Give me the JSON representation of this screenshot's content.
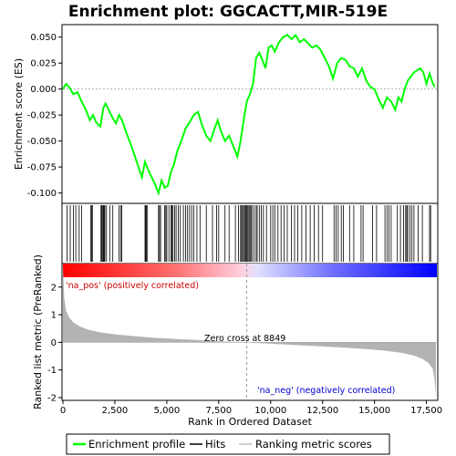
{
  "chart_data": {
    "type": "line",
    "title": "Enrichment plot: GGCACTT,MIR-519E",
    "ylabel_top": "Enrichment score (ES)",
    "ylabel_bottom": "Ranked list metric (PreRanked)",
    "xlabel": "Rank in Ordered Dataset",
    "xlim": [
      0,
      18000
    ],
    "es_ylim": [
      -0.11,
      0.062
    ],
    "metric_ylim": [
      -2.1,
      2.85
    ],
    "x_ticks": [
      "0",
      "2,500",
      "5,000",
      "7,500",
      "10,000",
      "12,500",
      "15,000",
      "17,500"
    ],
    "x_tick_values": [
      0,
      2500,
      5000,
      7500,
      10000,
      12500,
      15000,
      17500
    ],
    "es_ticks": [
      "0.050",
      "0.025",
      "0.000",
      "-0.025",
      "-0.050",
      "-0.075",
      "-0.100"
    ],
    "es_tick_values": [
      0.05,
      0.025,
      0.0,
      -0.025,
      -0.05,
      -0.075,
      -0.1
    ],
    "metric_ticks": [
      "2",
      "1",
      "0",
      "-1",
      "-2"
    ],
    "metric_tick_values": [
      2,
      1,
      0,
      -1,
      -2
    ],
    "enrichment_profile": {
      "x": [
        0,
        150,
        300,
        500,
        700,
        900,
        1100,
        1300,
        1450,
        1600,
        1800,
        1950,
        2050,
        2200,
        2400,
        2550,
        2700,
        2850,
        3050,
        3300,
        3550,
        3800,
        3950,
        4050,
        4200,
        4400,
        4600,
        4750,
        4900,
        5050,
        5200,
        5350,
        5500,
        5700,
        5900,
        6100,
        6300,
        6500,
        6700,
        6900,
        7100,
        7300,
        7450,
        7600,
        7800,
        8000,
        8200,
        8400,
        8550,
        8700,
        8850,
        9000,
        9150,
        9300,
        9450,
        9600,
        9750,
        9900,
        10050,
        10200,
        10400,
        10600,
        10800,
        11000,
        11200,
        11400,
        11600,
        11800,
        12000,
        12200,
        12400,
        12600,
        12800,
        13000,
        13200,
        13400,
        13600,
        13800,
        14000,
        14200,
        14400,
        14600,
        14800,
        15000,
        15200,
        15400,
        15600,
        15800,
        16000,
        16150,
        16300,
        16450,
        16600,
        16750,
        16900,
        17050,
        17200,
        17350,
        17500,
        17650,
        17800,
        17900
      ],
      "y": [
        0.0,
        0.005,
        0.002,
        -0.005,
        -0.003,
        -0.012,
        -0.02,
        -0.03,
        -0.025,
        -0.032,
        -0.036,
        -0.018,
        -0.014,
        -0.02,
        -0.028,
        -0.033,
        -0.025,
        -0.03,
        -0.042,
        -0.055,
        -0.07,
        -0.085,
        -0.07,
        -0.075,
        -0.082,
        -0.09,
        -0.1,
        -0.088,
        -0.095,
        -0.093,
        -0.08,
        -0.072,
        -0.06,
        -0.05,
        -0.038,
        -0.032,
        -0.025,
        -0.022,
        -0.035,
        -0.045,
        -0.05,
        -0.038,
        -0.03,
        -0.04,
        -0.05,
        -0.045,
        -0.055,
        -0.065,
        -0.05,
        -0.03,
        -0.012,
        -0.005,
        0.005,
        0.03,
        0.035,
        0.028,
        0.02,
        0.04,
        0.042,
        0.036,
        0.045,
        0.05,
        0.052,
        0.048,
        0.052,
        0.045,
        0.048,
        0.044,
        0.04,
        0.042,
        0.038,
        0.03,
        0.022,
        0.01,
        0.025,
        0.03,
        0.028,
        0.022,
        0.02,
        0.012,
        0.02,
        0.008,
        0.002,
        0.0,
        -0.01,
        -0.018,
        -0.008,
        -0.012,
        -0.02,
        -0.008,
        -0.012,
        0.0,
        0.008,
        0.012,
        0.016,
        0.018,
        0.02,
        0.016,
        0.005,
        0.015,
        0.006,
        0.002
      ]
    },
    "hits": [
      200,
      350,
      500,
      620,
      780,
      900,
      1330,
      1380,
      1420,
      1830,
      1870,
      1900,
      1950,
      1980,
      2020,
      2100,
      2250,
      2400,
      2700,
      2780,
      2830,
      3950,
      3980,
      4020,
      4050,
      4600,
      4650,
      4700,
      4900,
      4950,
      5000,
      5100,
      5200,
      5250,
      5300,
      5380,
      5450,
      5550,
      5650,
      5800,
      5900,
      6000,
      6100,
      6200,
      6300,
      6450,
      6600,
      6900,
      7200,
      7400,
      7500,
      7800,
      8000,
      8300,
      8450,
      8550,
      8600,
      8650,
      8700,
      8750,
      8800,
      8850,
      8900,
      8950,
      9000,
      9050,
      9100,
      9200,
      9300,
      9350,
      9450,
      9550,
      9650,
      9800,
      10000,
      10100,
      10200,
      10350,
      10500,
      10650,
      10800,
      11000,
      11150,
      11300,
      11500,
      11700,
      11900,
      12100,
      12300,
      12500,
      13050,
      13150,
      13250,
      13400,
      13500,
      13800,
      14000,
      14350,
      14450,
      14900,
      15100,
      15500,
      15600,
      15700,
      15800,
      16100,
      16250,
      16400,
      16500,
      16550,
      16600,
      16700,
      16800,
      16900,
      17100,
      17300,
      17650,
      17700
    ],
    "metric_curve": {
      "x": [
        0,
        60,
        150,
        300,
        500,
        800,
        1200,
        1800,
        2500,
        3500,
        4500,
        5500,
        6500,
        7500,
        8300,
        8849,
        9500,
        10500,
        11500,
        12500,
        13500,
        14500,
        15500,
        16300,
        16900,
        17300,
        17600,
        17800,
        17880,
        17950
      ],
      "y": [
        2.75,
        1.6,
        1.15,
        0.9,
        0.72,
        0.58,
        0.46,
        0.36,
        0.29,
        0.22,
        0.16,
        0.12,
        0.08,
        0.04,
        0.02,
        0.0,
        -0.03,
        -0.07,
        -0.11,
        -0.15,
        -0.19,
        -0.24,
        -0.3,
        -0.38,
        -0.48,
        -0.6,
        -0.75,
        -0.95,
        -1.3,
        -1.95
      ]
    },
    "zero_cross": 8849,
    "annotations": {
      "pos_label": "'na_pos' (positively correlated)",
      "neg_label": "'na_neg' (negatively correlated)",
      "zero_cross_label": "Zero cross at 8849"
    },
    "legend": [
      {
        "label": "Enrichment profile",
        "color": "#00ff00"
      },
      {
        "label": "Hits",
        "color": "#000000"
      },
      {
        "label": "Ranking metric scores",
        "color": "#c0c0c0"
      }
    ],
    "colors": {
      "profile": "#00ff00",
      "metric_fill": "#b3b3b3",
      "pos_text": "#cc0000",
      "neg_text": "#0000cc",
      "zero_line": "#999999"
    }
  }
}
